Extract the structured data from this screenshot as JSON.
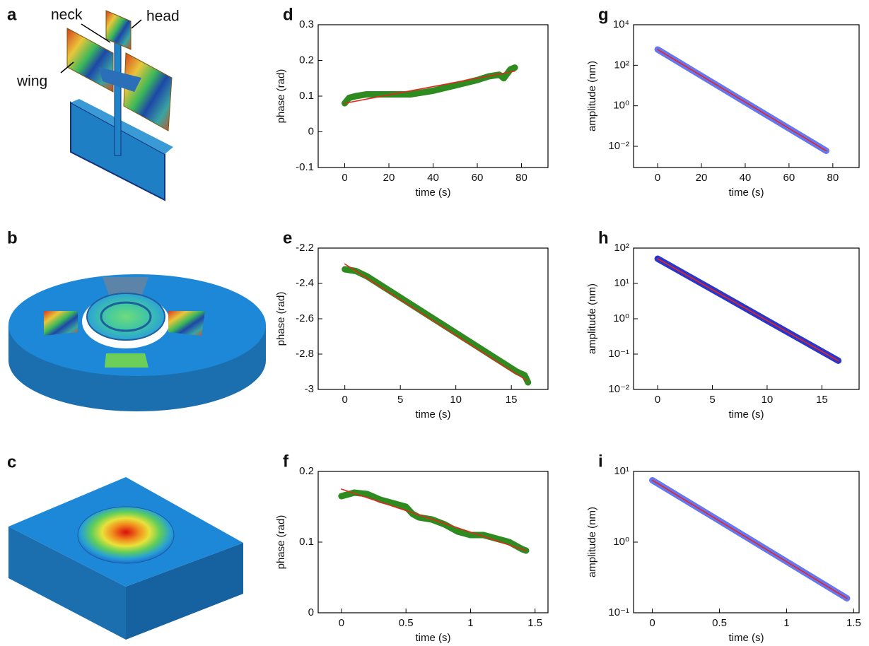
{
  "illustrations": [
    {
      "label": "a",
      "annotations": [
        "neck",
        "head",
        "wing"
      ]
    },
    {
      "label": "b"
    },
    {
      "label": "c"
    }
  ],
  "chart_data": [
    {
      "type": "line",
      "label": "d",
      "xlabel": "time (s)",
      "ylabel": "phase (rad)",
      "xlim": [
        -12,
        92
      ],
      "ylim": [
        -0.1,
        0.3
      ],
      "xticks": [
        0,
        20,
        40,
        60,
        80
      ],
      "yticks": [
        -0.1,
        0,
        0.1,
        0.2,
        0.3
      ],
      "series": [
        {
          "color": "#2e8b1f",
          "marker": true,
          "x": [
            0,
            2,
            5,
            10,
            20,
            30,
            40,
            50,
            60,
            65,
            70,
            72,
            75,
            77
          ],
          "values": [
            0.08,
            0.095,
            0.1,
            0.105,
            0.105,
            0.105,
            0.115,
            0.13,
            0.145,
            0.155,
            0.16,
            0.15,
            0.175,
            0.18
          ]
        },
        {
          "color": "#e8251c",
          "marker": false,
          "x": [
            0,
            77
          ],
          "values": [
            0.08,
            0.17
          ]
        }
      ]
    },
    {
      "type": "line",
      "label": "e",
      "xlabel": "time (s)",
      "ylabel": "phase (rad)",
      "xlim": [
        -2.4,
        18.3
      ],
      "ylim": [
        -3,
        -2.2
      ],
      "xticks": [
        0,
        5,
        10,
        15
      ],
      "yticks": [
        -3,
        -2.8,
        -2.6,
        -2.4,
        -2.2
      ],
      "series": [
        {
          "color": "#2e8b1f",
          "marker": true,
          "x": [
            0,
            1,
            2,
            4,
            6,
            8,
            10,
            12,
            14,
            15.5,
            16.2,
            16.5
          ],
          "values": [
            -2.32,
            -2.33,
            -2.36,
            -2.44,
            -2.52,
            -2.6,
            -2.68,
            -2.76,
            -2.84,
            -2.9,
            -2.92,
            -2.96
          ]
        },
        {
          "color": "#e8251c",
          "marker": false,
          "x": [
            0,
            16.4
          ],
          "values": [
            -2.29,
            -2.95
          ]
        }
      ]
    },
    {
      "type": "line",
      "label": "f",
      "xlabel": "time (s)",
      "ylabel": "phase (rad)",
      "xlim": [
        -0.18,
        1.6
      ],
      "ylim": [
        0,
        0.2
      ],
      "xticks": [
        0,
        0.5,
        1,
        1.5
      ],
      "yticks": [
        0,
        0.1,
        0.2
      ],
      "series": [
        {
          "color": "#2e8b1f",
          "marker": true,
          "x": [
            0,
            0.1,
            0.2,
            0.3,
            0.4,
            0.5,
            0.55,
            0.6,
            0.7,
            0.8,
            0.9,
            1.0,
            1.1,
            1.2,
            1.3,
            1.4,
            1.43
          ],
          "values": [
            0.165,
            0.17,
            0.168,
            0.16,
            0.155,
            0.15,
            0.14,
            0.135,
            0.132,
            0.125,
            0.115,
            0.11,
            0.11,
            0.105,
            0.1,
            0.09,
            0.088
          ]
        },
        {
          "color": "#e8251c",
          "marker": false,
          "x": [
            0,
            1.43
          ],
          "values": [
            0.175,
            0.088
          ]
        }
      ]
    },
    {
      "type": "line",
      "label": "g",
      "xlabel": "time (s)",
      "ylabel": "amplitude (nm)",
      "yscale": "log",
      "xlim": [
        -11,
        92
      ],
      "ylim": [
        0.0009,
        10000
      ],
      "xticks": [
        0,
        20,
        40,
        60,
        80
      ],
      "yticks": [
        {
          "value": 0.01,
          "label": "10⁻²"
        },
        {
          "value": 1,
          "label": "10⁰"
        },
        {
          "value": 100,
          "label": "10²"
        },
        {
          "value": 10000,
          "label": "10⁴"
        }
      ],
      "series": [
        {
          "color": "#6477f0",
          "marker": true,
          "x": [
            0,
            20,
            40,
            60,
            77
          ],
          "values": [
            600,
            30,
            1.5,
            0.076,
            0.006
          ]
        },
        {
          "color": "#e8251c",
          "marker": false,
          "x": [
            0,
            77
          ],
          "values": [
            600,
            0.006
          ]
        }
      ]
    },
    {
      "type": "line",
      "label": "h",
      "xlabel": "time (s)",
      "ylabel": "amplitude (nm)",
      "yscale": "log",
      "xlim": [
        -2.2,
        18.4
      ],
      "ylim": [
        0.01,
        100
      ],
      "xticks": [
        0,
        5,
        10,
        15
      ],
      "yticks": [
        {
          "value": 0.01,
          "label": "10⁻²"
        },
        {
          "value": 0.1,
          "label": "10⁻¹"
        },
        {
          "value": 1,
          "label": "10⁰"
        },
        {
          "value": 10,
          "label": "10¹"
        },
        {
          "value": 100,
          "label": "10²"
        }
      ],
      "series": [
        {
          "color": "#2a35c9",
          "marker": true,
          "x": [
            0,
            5,
            10,
            15,
            16.5
          ],
          "values": [
            50,
            6.7,
            0.89,
            0.119,
            0.065
          ]
        },
        {
          "color": "#e8251c",
          "marker": false,
          "x": [
            0,
            16.5
          ],
          "values": [
            50,
            0.065
          ]
        }
      ]
    },
    {
      "type": "line",
      "label": "i",
      "xlabel": "time (s)",
      "ylabel": "amplitude (nm)",
      "yscale": "log",
      "xlim": [
        -0.14,
        1.54
      ],
      "ylim": [
        0.1,
        10
      ],
      "xticks": [
        0,
        0.5,
        1,
        1.5
      ],
      "yticks": [
        {
          "value": 0.1,
          "label": "10⁻¹"
        },
        {
          "value": 1,
          "label": "10⁰"
        },
        {
          "value": 10,
          "label": "10¹"
        }
      ],
      "series": [
        {
          "color": "#6477f0",
          "marker": true,
          "x": [
            0,
            0.5,
            1.0,
            1.45
          ],
          "values": [
            7.5,
            2.0,
            0.53,
            0.16
          ]
        },
        {
          "color": "#e8251c",
          "marker": false,
          "x": [
            0,
            1.45
          ],
          "values": [
            7.5,
            0.16
          ]
        }
      ]
    }
  ]
}
